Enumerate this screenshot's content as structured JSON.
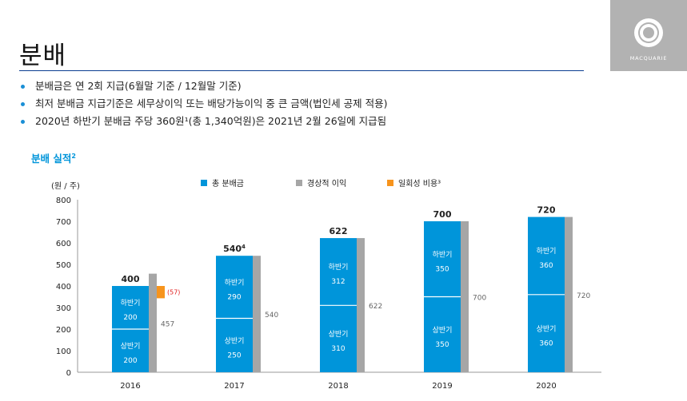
{
  "header": {
    "title": "분배",
    "logo_text": "MACQUARIE"
  },
  "bullets": [
    "분배금은 연 2회 지급(6월말 기준 / 12월말 기준)",
    "최저 분배금 지급기준은 세무상이익 또는 배당가능이익 중 큰 금액(법인세 공제 적용)",
    "2020년 하반기 분배금 주당 360원¹(총 1,340억원)은 2021년 2월 26일에 지급됨"
  ],
  "section": {
    "title": "분배 실적",
    "title_sup": "2"
  },
  "colors": {
    "distribution": "#0095da",
    "profit": "#a6a6a6",
    "one_off": "#f7941d",
    "negative_label": "#e02020"
  },
  "chart_data": {
    "type": "bar",
    "title": "분배 실적",
    "ylabel": "(원 / 주)",
    "ylim": [
      0,
      800
    ],
    "yticks": [
      0,
      100,
      200,
      300,
      400,
      500,
      600,
      700,
      800
    ],
    "grid": false,
    "legend": [
      "총 분배금",
      "경상적 이익",
      "일회성 비용³"
    ],
    "legend_position": "top",
    "first_half_label": "상반기",
    "second_half_label": "하반기",
    "categories": [
      "2016",
      "2017",
      "2018",
      "2019",
      "2020"
    ],
    "series": [
      {
        "name": "상반기",
        "values": [
          200,
          250,
          310,
          350,
          360
        ]
      },
      {
        "name": "하반기",
        "values": [
          200,
          290,
          312,
          350,
          360
        ]
      },
      {
        "name": "경상적 이익",
        "values": [
          457,
          540,
          622,
          700,
          720
        ]
      },
      {
        "name": "일회성 비용",
        "values": [
          57,
          null,
          null,
          null,
          null
        ]
      }
    ],
    "totals": [
      "400",
      "540",
      "622",
      "700",
      "720"
    ],
    "total_superscripts": [
      "",
      "4",
      "",
      "",
      ""
    ],
    "profit_labels": [
      "457",
      "540",
      "622",
      "700",
      "720"
    ],
    "one_off_labels": [
      "(57)",
      "",
      "",
      "",
      ""
    ]
  }
}
